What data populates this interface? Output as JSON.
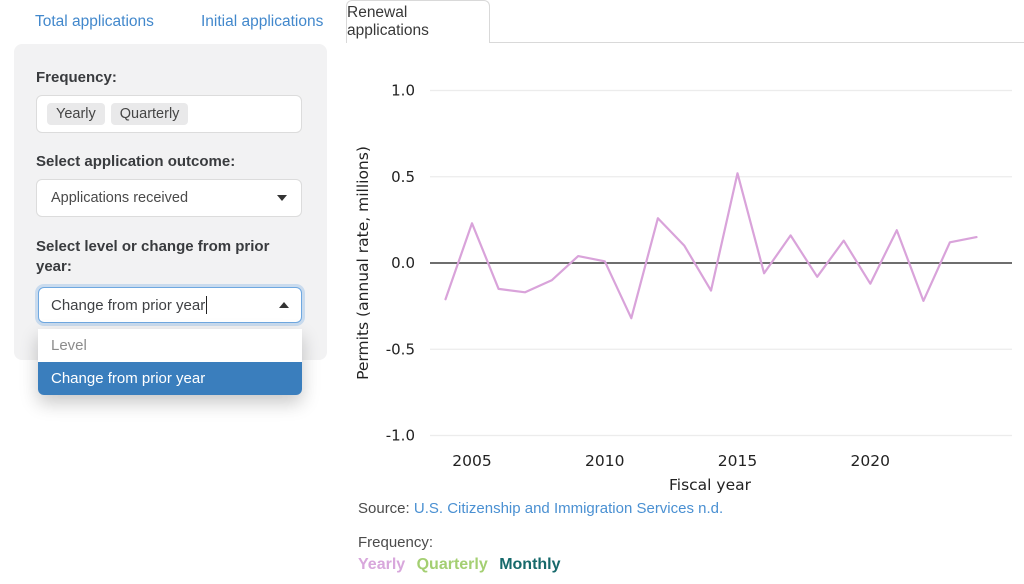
{
  "tabs": [
    {
      "label": "Total applications",
      "active": false
    },
    {
      "label": "Initial applications",
      "active": false
    },
    {
      "label": "Renewal applications",
      "active": true
    }
  ],
  "sidebar": {
    "frequency_label": "Frequency:",
    "frequency_tokens": [
      {
        "label": "Yearly"
      },
      {
        "label": "Quarterly"
      }
    ],
    "outcome_label": "Select application outcome:",
    "outcome_value": "Applications received",
    "level_label": "Select level or change from prior year:",
    "level_input_value": "Change from prior year",
    "dropdown_options": [
      {
        "label": "Level",
        "selected": false
      },
      {
        "label": "Change from prior year",
        "selected": true
      }
    ]
  },
  "chart_data": {
    "type": "line",
    "title": "",
    "xlabel": "Fiscal year",
    "ylabel": "Permits (annual rate, millions)",
    "ylim": [
      -1.0,
      1.0
    ],
    "xlim": [
      2003.4,
      2025.4
    ],
    "grid": true,
    "zero_line": true,
    "ytick_labels": [
      "1.0",
      "0.5",
      "0.0",
      "-0.5",
      "-1.0"
    ],
    "ytick_values": [
      1.0,
      0.5,
      0.0,
      -0.5,
      -1.0
    ],
    "xtick_labels": [
      "2005",
      "2010",
      "2015",
      "2020"
    ],
    "xtick_values": [
      2005,
      2010,
      2015,
      2020
    ],
    "series": [
      {
        "name": "Yearly",
        "color": "#d9a3da",
        "x": [
          2004,
          2005,
          2006,
          2007,
          2008,
          2009,
          2010,
          2011,
          2012,
          2013,
          2014,
          2015,
          2016,
          2017,
          2018,
          2019,
          2020,
          2021,
          2022,
          2023,
          2024
        ],
        "values": [
          -0.21,
          0.23,
          -0.15,
          -0.17,
          -0.1,
          0.04,
          0.01,
          -0.32,
          0.26,
          0.1,
          -0.16,
          0.52,
          -0.06,
          0.16,
          -0.08,
          0.13,
          -0.12,
          0.19,
          -0.22,
          0.12,
          0.15
        ]
      }
    ]
  },
  "footer": {
    "source_prefix": "Source: ",
    "source_link": "U.S. Citizenship and Immigration Services n.d.",
    "frequency_caption": "Frequency:",
    "frequency_links": [
      {
        "label": "Yearly",
        "color": "#d8a7dc"
      },
      {
        "label": "Quarterly",
        "color": "#a4cf72"
      },
      {
        "label": "Monthly",
        "color": "#16696b"
      }
    ]
  },
  "colors": {
    "tab_link": "#4288cc",
    "active_tab_text": "#383838",
    "panel_bg": "#f2f2f3",
    "dropdown_selected_bg": "#3a7ebd",
    "line_series": "#d9a3da",
    "zero_line": "#3f3f3f",
    "gridline": "#ececec",
    "source_link": "#4a90d2"
  }
}
